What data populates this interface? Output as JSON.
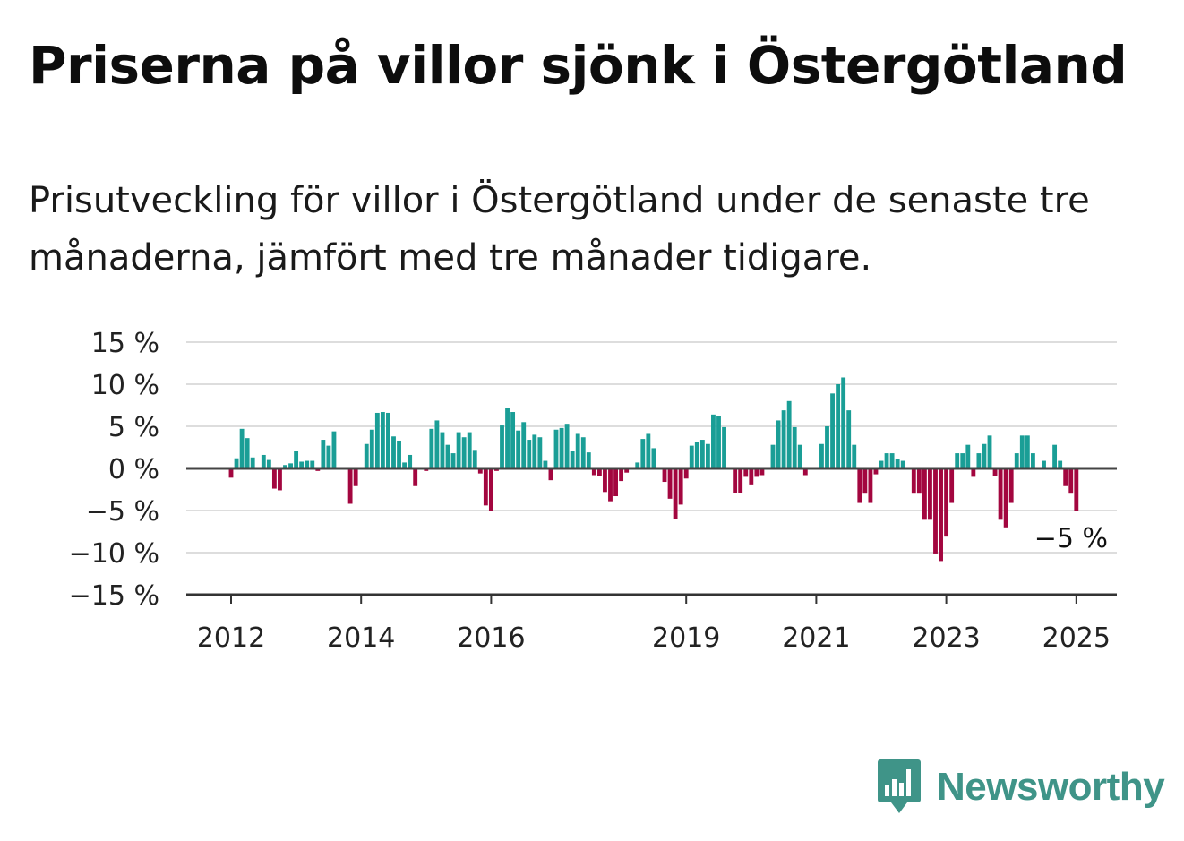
{
  "title": "Priserna på villor sjönk i Östergötland",
  "subtitle": "Prisutveckling för villor i Östergötland under de senaste tre månaderna, jämfört med tre månader tidigare.",
  "brand": {
    "name": "Newsworthy",
    "icon": "newsworthy-logo-icon",
    "color": "#3f9488"
  },
  "colors": {
    "positive": "#1a9e96",
    "negative": "#a3063f",
    "grid": "#dddddd",
    "axis": "#444444"
  },
  "chart_data": {
    "type": "bar",
    "title": "",
    "xlabel": "",
    "ylabel": "",
    "ylim": [
      -15,
      15
    ],
    "grid": true,
    "yticks": [
      {
        "value": 15,
        "label": "15 %"
      },
      {
        "value": 10,
        "label": "10 %"
      },
      {
        "value": 5,
        "label": "5 %"
      },
      {
        "value": 0,
        "label": "0 %"
      },
      {
        "value": -5,
        "label": "−5 %"
      },
      {
        "value": -10,
        "label": "−10 %"
      },
      {
        "value": -15,
        "label": "−15 %"
      }
    ],
    "x_start": "2012-01",
    "xticks": [
      {
        "date": "2012-01",
        "label": "2012"
      },
      {
        "date": "2014-01",
        "label": "2014"
      },
      {
        "date": "2016-01",
        "label": "2016"
      },
      {
        "date": "2019-01",
        "label": "2019"
      },
      {
        "date": "2021-01",
        "label": "2021"
      },
      {
        "date": "2023-01",
        "label": "2023"
      },
      {
        "date": "2025-01",
        "label": "2025"
      }
    ],
    "last_value_label": "−5 %",
    "series": [
      {
        "values": [
          -1.1,
          1.2,
          4.7,
          3.6,
          1.3,
          0,
          1.6,
          1.0,
          -2.4,
          -2.6,
          0.4,
          0.6,
          2.1,
          0.8,
          0.9,
          0.9,
          -0.3,
          3.4,
          2.7,
          4.4,
          0,
          0,
          -4.2,
          -2.1,
          0,
          2.9,
          4.6,
          6.6,
          6.7,
          6.6,
          3.8,
          3.3,
          0.7,
          1.6,
          -2.1,
          0,
          -0.3,
          4.7,
          5.7,
          4.3,
          2.8,
          1.8,
          4.3,
          3.7,
          4.3,
          2.2,
          -0.6,
          -4.4,
          -5.0,
          -0.3,
          5.1,
          7.2,
          6.7,
          4.5,
          5.5,
          3.4,
          4.0,
          3.7,
          0.9,
          -1.4,
          4.6,
          4.8,
          5.3,
          2.1,
          4.1,
          3.7,
          1.9,
          -0.8,
          -0.9,
          -2.8,
          -3.9,
          -3.3,
          -1.5,
          -0.5,
          0,
          0.7,
          3.5,
          4.1,
          2.4,
          0,
          -1.6,
          -3.6,
          -6.0,
          -4.3,
          -1.2,
          2.7,
          3.1,
          3.4,
          2.9,
          6.4,
          6.2,
          4.9,
          0,
          -2.9,
          -2.9,
          -1.0,
          -1.9,
          -1.0,
          -0.8,
          0,
          2.8,
          5.7,
          6.9,
          8.0,
          4.9,
          2.8,
          -0.8,
          0,
          0,
          2.9,
          5.0,
          8.9,
          10.0,
          10.8,
          6.9,
          2.8,
          -4.1,
          -3.0,
          -4.1,
          -0.7,
          0.9,
          1.8,
          1.8,
          1.1,
          0.9,
          0,
          -3.0,
          -3.0,
          -6.1,
          -6.1,
          -10.1,
          -11.0,
          -8.1,
          -4.1,
          1.8,
          1.8,
          2.8,
          -1.0,
          1.8,
          2.9,
          3.9,
          -0.9,
          -6.1,
          -7.0,
          -4.1,
          1.8,
          3.9,
          3.9,
          1.8,
          0,
          0.9,
          0,
          2.8,
          0.9,
          -2.1,
          -3.0,
          -5.0
        ]
      }
    ]
  }
}
